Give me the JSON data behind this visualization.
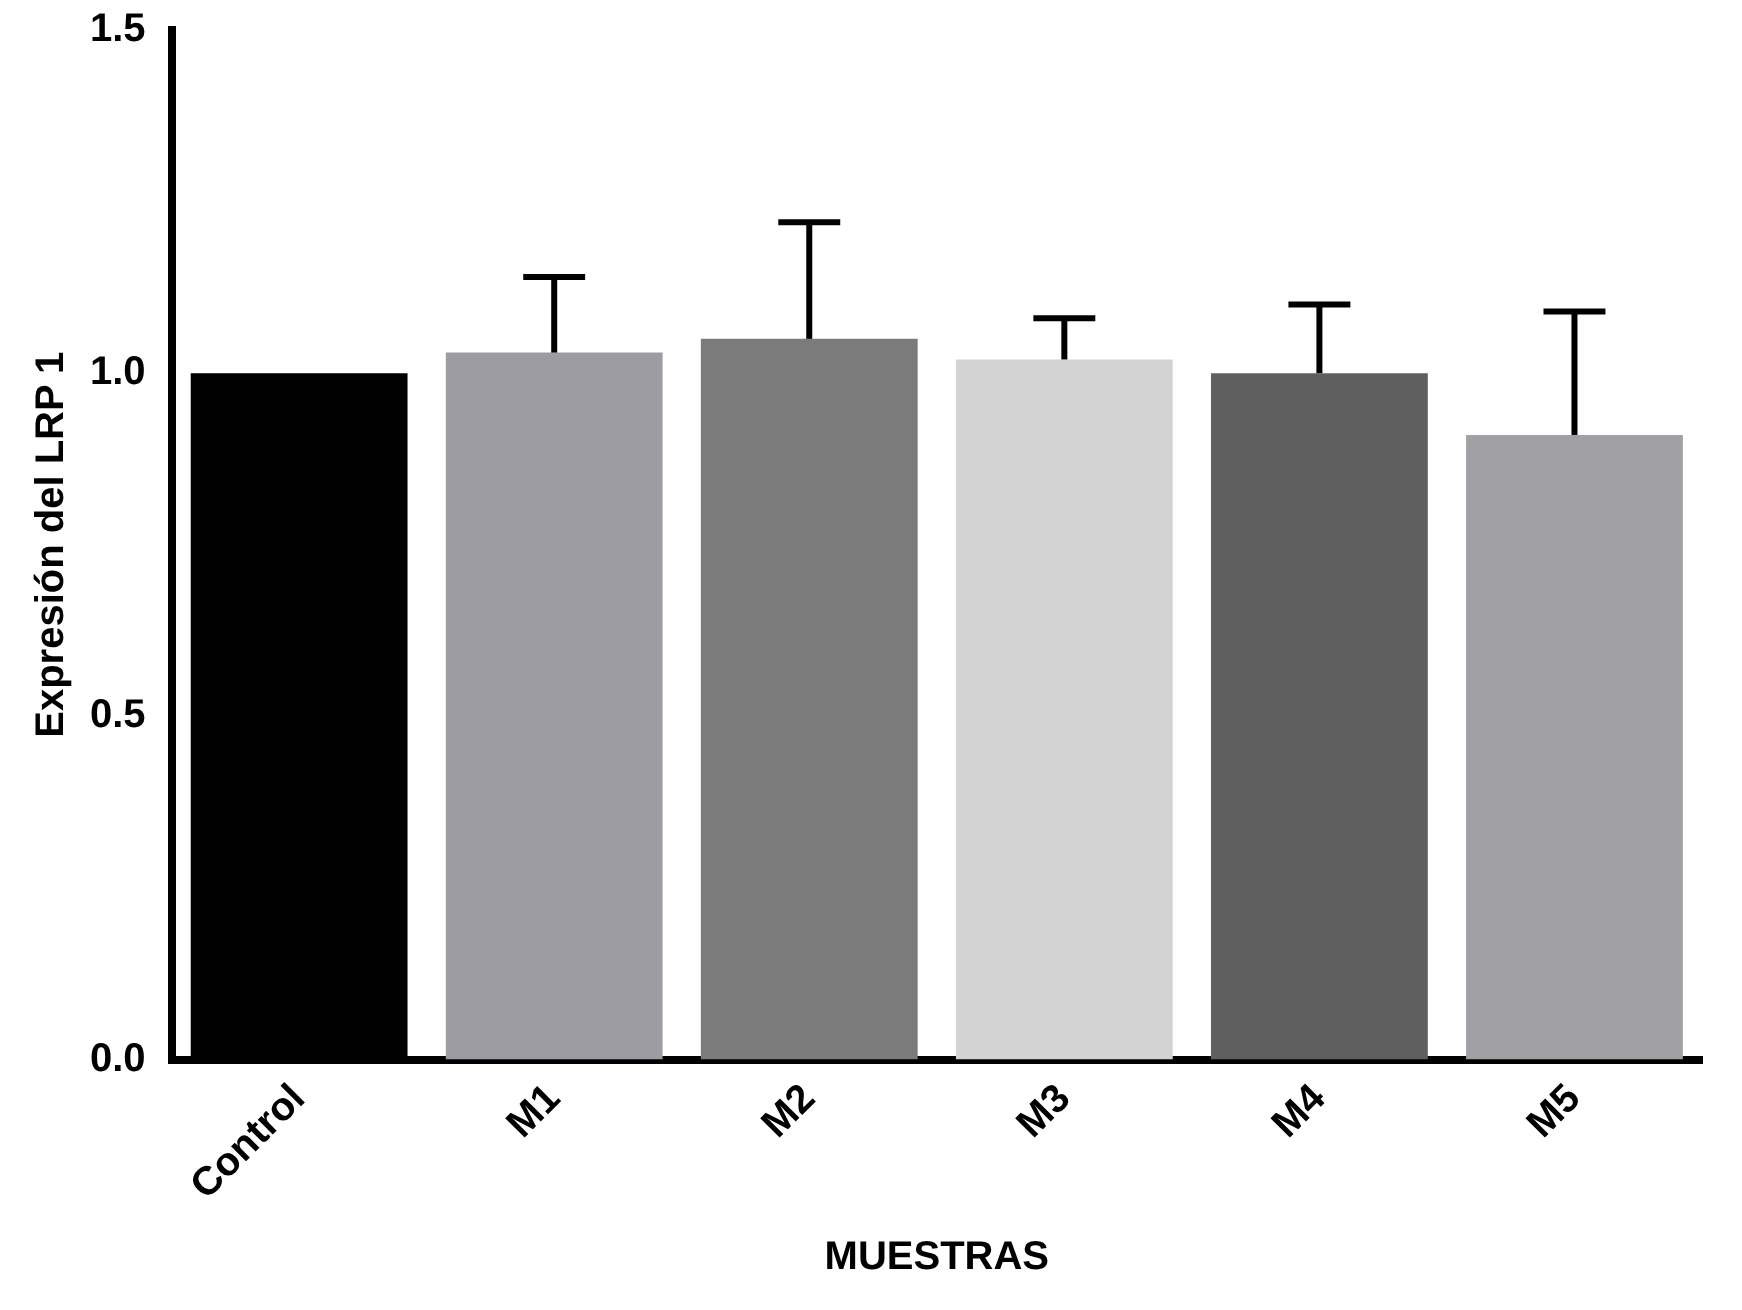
{
  "chart_data": {
    "type": "bar",
    "ylabel": "Expresión del LRP 1",
    "xlabel": "MUESTRAS",
    "categories": [
      "Control",
      "M1",
      "M2",
      "M3",
      "M4",
      "M5"
    ],
    "values": [
      1.0,
      1.03,
      1.05,
      1.02,
      1.0,
      0.91
    ],
    "colors": [
      "#000000",
      "#9d9ca3",
      "#7b7b7b",
      "#d3d3d3",
      "#5f5f5f",
      "#a0a0a5"
    ],
    "errors": [
      null,
      [
        1.03,
        1.14
      ],
      [
        1.05,
        1.22
      ],
      [
        1.02,
        1.08
      ],
      [
        1.0,
        1.1
      ],
      [
        0.91,
        1.09
      ]
    ],
    "ylim": [
      0,
      1.5
    ],
    "yticks": [
      {
        "value": 0,
        "label": "0.0"
      },
      {
        "value": 0.5,
        "label": "0.5"
      },
      {
        "value": 1,
        "label": "1.0"
      },
      {
        "value": 1.5,
        "label": "1.5"
      }
    ],
    "grid": false,
    "legend": false
  }
}
